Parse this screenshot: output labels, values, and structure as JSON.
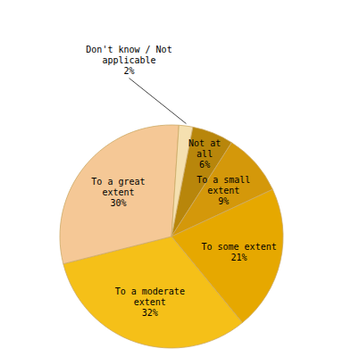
{
  "chart_data": {
    "type": "pie",
    "categories": [
      "Not at\nall\n6%",
      "To a small\nextent\n9%",
      "To some extent\n21%",
      "To a moderate\nextent\n32%",
      "To a great\nextent\n30%",
      "Don't know / Not\napplicable\n2%"
    ],
    "values": [
      6,
      9,
      21,
      32,
      30,
      2
    ],
    "colors": [
      "#b8860b",
      "#d4980a",
      "#e6a800",
      "#f5c018",
      "#f5c896",
      "#f5e0b0"
    ]
  }
}
